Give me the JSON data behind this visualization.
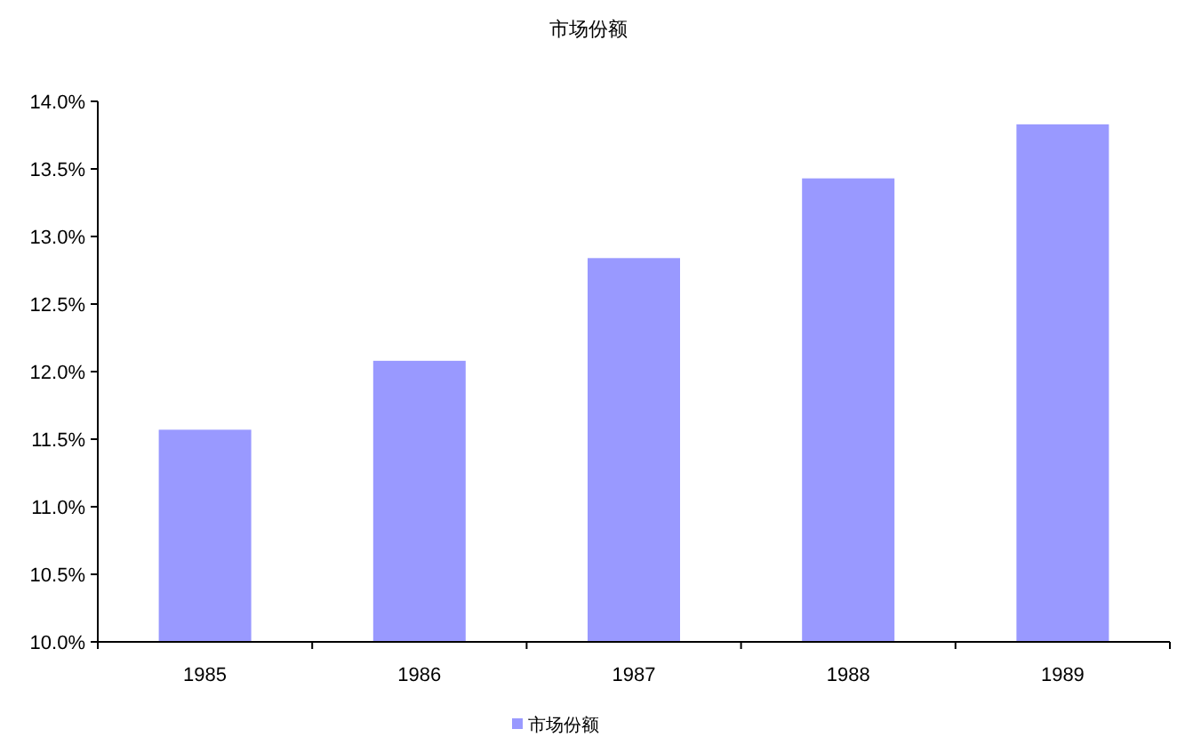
{
  "chart_data": {
    "type": "bar",
    "title": "市场份额",
    "categories": [
      "1985",
      "1986",
      "1987",
      "1988",
      "1989"
    ],
    "series": [
      {
        "name": "市场份额",
        "color": "#9999ff",
        "values": [
          11.57,
          12.08,
          12.84,
          13.43,
          13.83
        ]
      }
    ],
    "ylim": [
      10,
      14
    ],
    "yticks": [
      {
        "value": 10,
        "label": "10.0%"
      },
      {
        "value": 10.5,
        "label": "10.5%"
      },
      {
        "value": 11,
        "label": "11.0%"
      },
      {
        "value": 11.5,
        "label": "11.5%"
      },
      {
        "value": 12,
        "label": "12.0%"
      },
      {
        "value": 12.5,
        "label": "12.5%"
      },
      {
        "value": 13,
        "label": "13.0%"
      },
      {
        "value": 13.5,
        "label": "13.5%"
      },
      {
        "value": 14,
        "label": "14.0%"
      }
    ],
    "grid": false,
    "legend": "bottom"
  }
}
